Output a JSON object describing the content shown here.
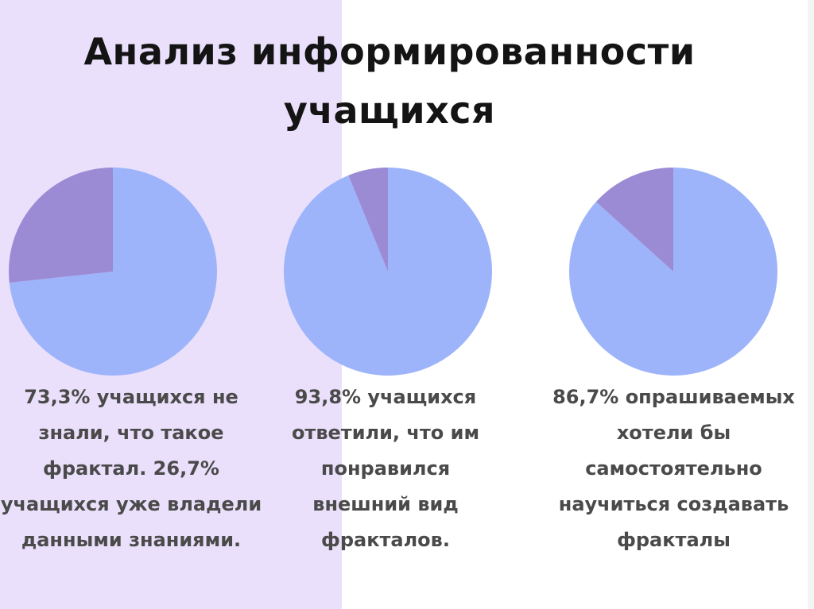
{
  "title": {
    "line1": "Анализ информированности",
    "line2": "учащихся"
  },
  "colors": {
    "major": "#9db4fb",
    "minor": "#9b8ad4",
    "left_panel": "#ebe0fb"
  },
  "chart_data": [
    {
      "type": "pie",
      "title": "",
      "slices": [
        {
          "label": "",
          "value": 73.3
        },
        {
          "label": "",
          "value": 26.7
        }
      ],
      "caption": "73,3% учащихся не знали, что такое фрактал. 26,7% учащихся уже владели данными знаниями."
    },
    {
      "type": "pie",
      "title": "",
      "slices": [
        {
          "label": "",
          "value": 93.8
        },
        {
          "label": "",
          "value": 6.2
        }
      ],
      "caption": "93,8% учащихся ответили, что им понравился внешний вид фракталов."
    },
    {
      "type": "pie",
      "title": "",
      "slices": [
        {
          "label": "",
          "value": 86.7
        },
        {
          "label": "",
          "value": 13.3
        }
      ],
      "caption": "86,7% опрашиваемых хотели бы самостоятельно научиться создавать фракталы"
    }
  ]
}
